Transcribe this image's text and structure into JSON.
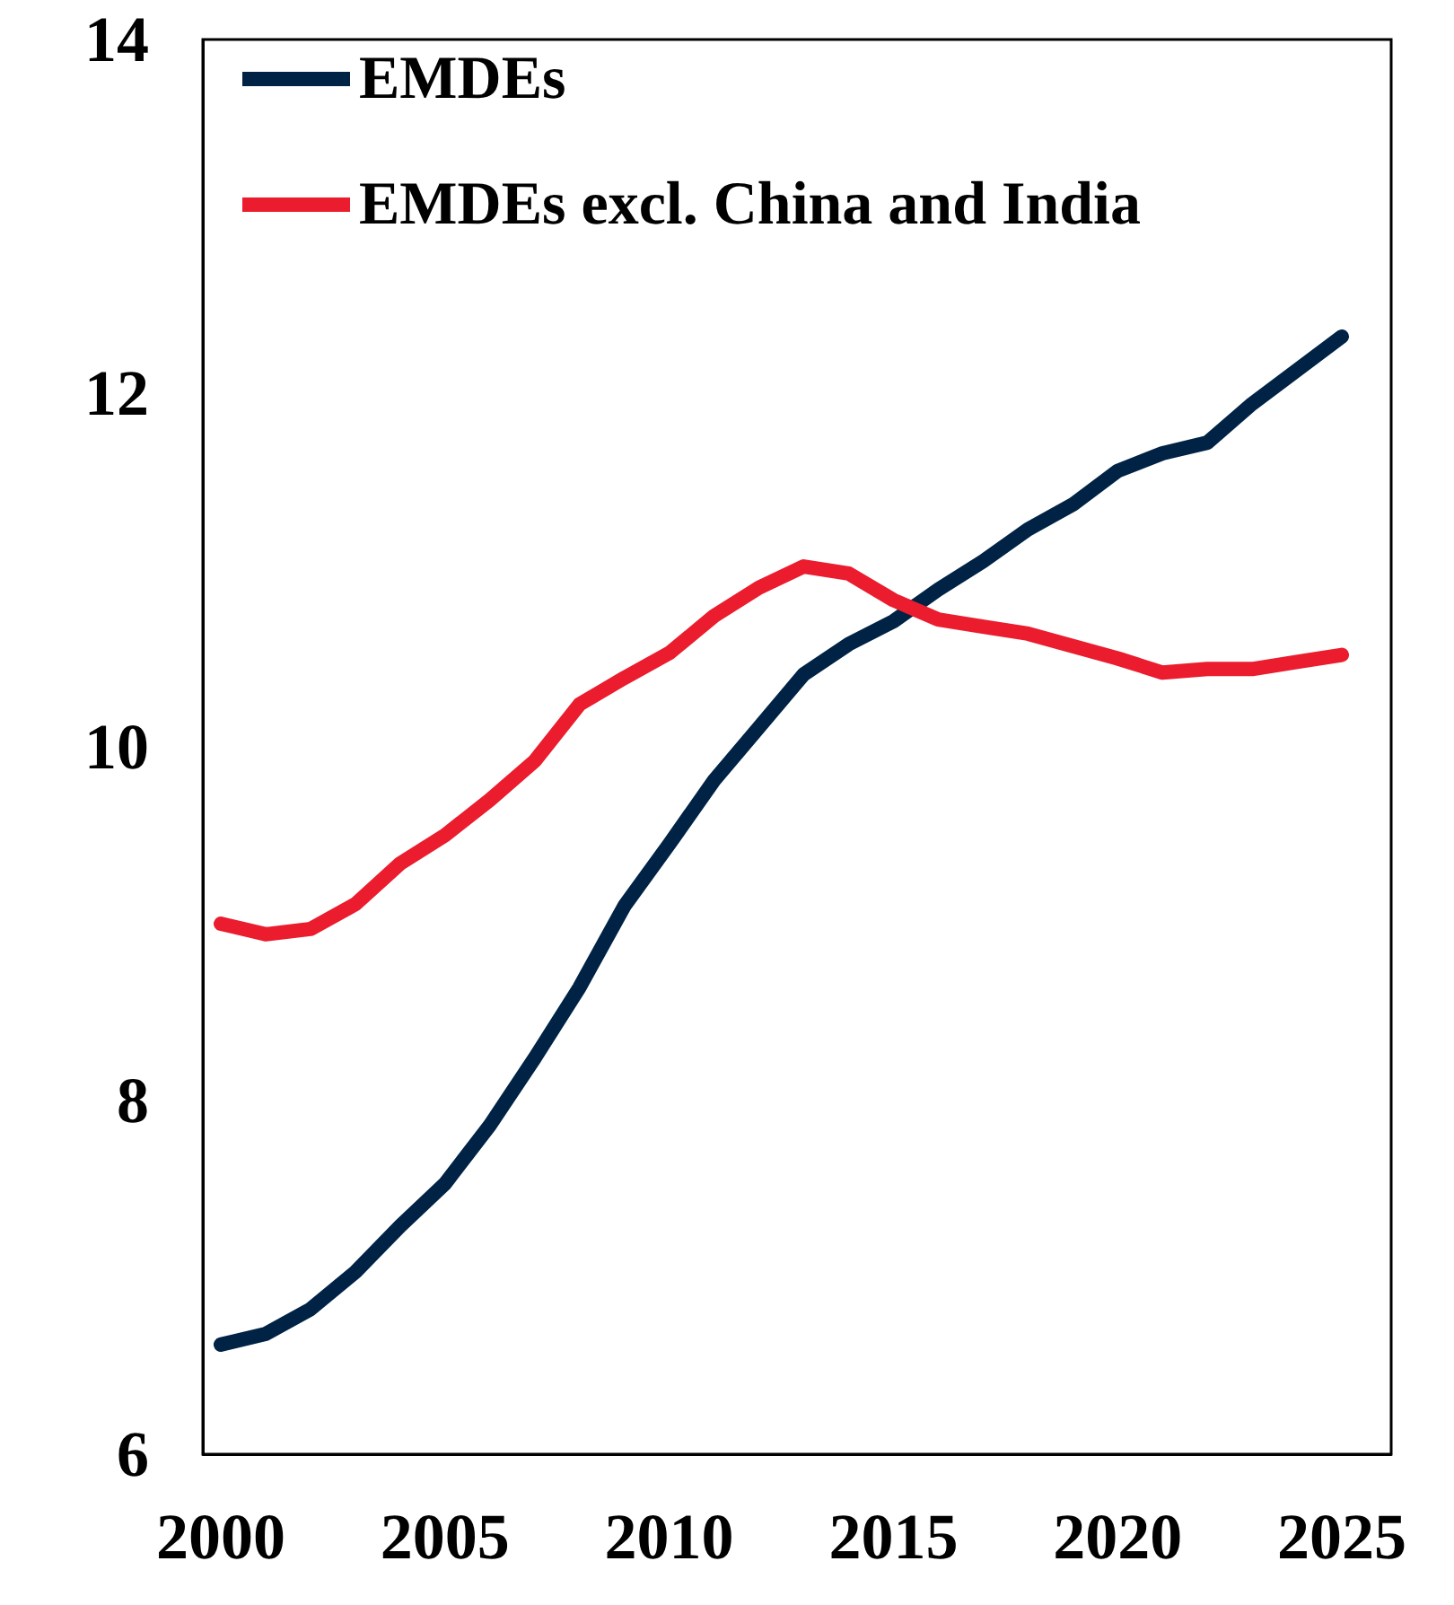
{
  "chart_data": {
    "type": "line",
    "x": [
      2000,
      2001,
      2002,
      2003,
      2004,
      2005,
      2006,
      2007,
      2008,
      2009,
      2010,
      2011,
      2012,
      2013,
      2014,
      2015,
      2016,
      2017,
      2018,
      2019,
      2020,
      2021,
      2022,
      2023,
      2024,
      2025
    ],
    "series": [
      {
        "name": "EMDEs",
        "color": "#002345",
        "values": [
          6.62,
          6.68,
          6.82,
          7.03,
          7.29,
          7.53,
          7.86,
          8.24,
          8.64,
          9.1,
          9.45,
          9.81,
          10.11,
          10.41,
          10.58,
          10.71,
          10.89,
          11.05,
          11.23,
          11.37,
          11.56,
          11.66,
          11.72,
          11.94,
          12.13,
          12.32
        ]
      },
      {
        "name": "EMDEs excl. China and India",
        "color": "#eb1c2d",
        "values": [
          9.0,
          8.94,
          8.97,
          9.11,
          9.34,
          9.5,
          9.7,
          9.92,
          10.24,
          10.39,
          10.53,
          10.74,
          10.9,
          11.02,
          10.98,
          10.83,
          10.72,
          10.68,
          10.64,
          10.57,
          10.5,
          10.42,
          10.44,
          10.44,
          10.48,
          10.52
        ]
      }
    ],
    "xlim": [
      1999.6,
      2026.1
    ],
    "xticks": [
      2000,
      2005,
      2010,
      2015,
      2020,
      2025
    ],
    "ylim": [
      6,
      14
    ],
    "yticks": [
      6,
      8,
      10,
      12,
      14
    ],
    "grid": false,
    "legend": "top left",
    "line_style": "solid"
  }
}
